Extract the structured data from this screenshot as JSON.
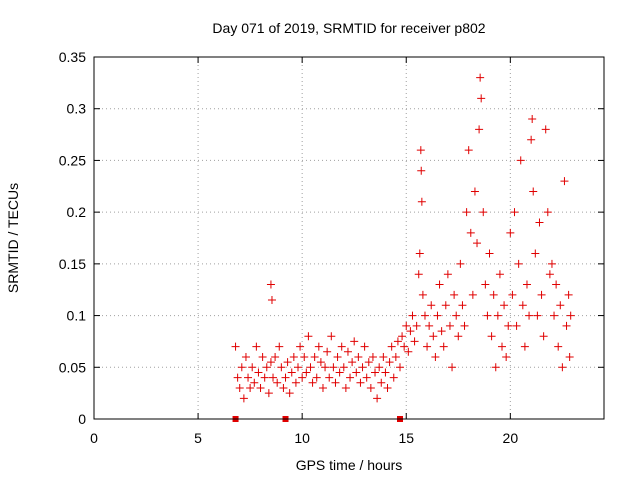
{
  "colors": {
    "series": "#e00000",
    "axis": "#000000",
    "grid": "#a0a0a0",
    "background": "#ffffff"
  },
  "chart_data": {
    "type": "scatter",
    "title": "Day 071 of 2019, SRMTID for receiver p802",
    "xlabel": "GPS time / hours",
    "ylabel": "SRMTID / TECUs",
    "xlim": [
      0,
      24.5
    ],
    "ylim": [
      0,
      0.35
    ],
    "xticks": [
      0,
      5,
      10,
      15,
      20
    ],
    "yticks": [
      0,
      0.05,
      0.1,
      0.15,
      0.2,
      0.25,
      0.3,
      0.35
    ],
    "xtick_labels": [
      "0",
      "5",
      "10",
      "15",
      "20"
    ],
    "ytick_labels": [
      "0",
      "0.05",
      "0.1",
      "0.15",
      "0.2",
      "0.25",
      "0.3",
      "0.35"
    ],
    "grid": true,
    "series": [
      {
        "name": "SRMTID",
        "marker": "+",
        "points": [
          [
            6.8,
            0.07
          ],
          [
            6.9,
            0.04
          ],
          [
            7.0,
            0.03
          ],
          [
            7.1,
            0.05
          ],
          [
            7.2,
            0.02
          ],
          [
            7.3,
            0.06
          ],
          [
            7.4,
            0.04
          ],
          [
            7.5,
            0.03
          ],
          [
            7.6,
            0.05
          ],
          [
            7.7,
            0.035
          ],
          [
            7.8,
            0.07
          ],
          [
            7.9,
            0.045
          ],
          [
            8.0,
            0.03
          ],
          [
            8.1,
            0.06
          ],
          [
            8.2,
            0.04
          ],
          [
            8.3,
            0.05
          ],
          [
            8.4,
            0.025
          ],
          [
            8.5,
            0.055
          ],
          [
            8.5,
            0.13
          ],
          [
            8.55,
            0.115
          ],
          [
            8.6,
            0.04
          ],
          [
            8.7,
            0.06
          ],
          [
            8.8,
            0.035
          ],
          [
            8.9,
            0.07
          ],
          [
            9.0,
            0.05
          ],
          [
            9.1,
            0.03
          ],
          [
            9.2,
            0.04
          ],
          [
            9.3,
            0.055
          ],
          [
            9.4,
            0.025
          ],
          [
            9.5,
            0.045
          ],
          [
            9.6,
            0.06
          ],
          [
            9.7,
            0.035
          ],
          [
            9.8,
            0.05
          ],
          [
            9.9,
            0.07
          ],
          [
            10.0,
            0.04
          ],
          [
            10.1,
            0.06
          ],
          [
            10.2,
            0.045
          ],
          [
            10.3,
            0.08
          ],
          [
            10.4,
            0.05
          ],
          [
            10.5,
            0.035
          ],
          [
            10.6,
            0.06
          ],
          [
            10.7,
            0.04
          ],
          [
            10.8,
            0.07
          ],
          [
            10.9,
            0.055
          ],
          [
            11.0,
            0.03
          ],
          [
            11.1,
            0.05
          ],
          [
            11.2,
            0.065
          ],
          [
            11.3,
            0.04
          ],
          [
            11.4,
            0.08
          ],
          [
            11.5,
            0.05
          ],
          [
            11.6,
            0.035
          ],
          [
            11.7,
            0.06
          ],
          [
            11.8,
            0.045
          ],
          [
            11.9,
            0.07
          ],
          [
            12.0,
            0.05
          ],
          [
            12.1,
            0.03
          ],
          [
            12.2,
            0.065
          ],
          [
            12.3,
            0.04
          ],
          [
            12.4,
            0.055
          ],
          [
            12.5,
            0.075
          ],
          [
            12.6,
            0.045
          ],
          [
            12.7,
            0.06
          ],
          [
            12.8,
            0.035
          ],
          [
            12.9,
            0.05
          ],
          [
            13.0,
            0.07
          ],
          [
            13.1,
            0.04
          ],
          [
            13.2,
            0.055
          ],
          [
            13.3,
            0.03
          ],
          [
            13.4,
            0.06
          ],
          [
            13.5,
            0.045
          ],
          [
            13.6,
            0.02
          ],
          [
            13.7,
            0.05
          ],
          [
            13.8,
            0.035
          ],
          [
            13.9,
            0.06
          ],
          [
            14.0,
            0.045
          ],
          [
            14.1,
            0.03
          ],
          [
            14.2,
            0.055
          ],
          [
            14.3,
            0.07
          ],
          [
            14.4,
            0.04
          ],
          [
            14.5,
            0.06
          ],
          [
            14.6,
            0.075
          ],
          [
            14.7,
            0.05
          ],
          [
            14.8,
            0.08
          ],
          [
            14.9,
            0.07
          ],
          [
            15.0,
            0.09
          ],
          [
            15.1,
            0.065
          ],
          [
            15.2,
            0.085
          ],
          [
            15.3,
            0.1
          ],
          [
            15.4,
            0.075
          ],
          [
            15.5,
            0.09
          ],
          [
            15.6,
            0.14
          ],
          [
            15.65,
            0.16
          ],
          [
            15.7,
            0.26
          ],
          [
            15.72,
            0.24
          ],
          [
            15.75,
            0.21
          ],
          [
            15.8,
            0.12
          ],
          [
            15.9,
            0.1
          ],
          [
            16.0,
            0.07
          ],
          [
            16.1,
            0.09
          ],
          [
            16.2,
            0.11
          ],
          [
            16.3,
            0.08
          ],
          [
            16.4,
            0.06
          ],
          [
            16.5,
            0.1
          ],
          [
            16.6,
            0.13
          ],
          [
            16.7,
            0.085
          ],
          [
            16.8,
            0.07
          ],
          [
            16.9,
            0.11
          ],
          [
            17.0,
            0.14
          ],
          [
            17.1,
            0.09
          ],
          [
            17.2,
            0.05
          ],
          [
            17.3,
            0.12
          ],
          [
            17.4,
            0.1
          ],
          [
            17.5,
            0.08
          ],
          [
            17.6,
            0.15
          ],
          [
            17.7,
            0.11
          ],
          [
            17.8,
            0.09
          ],
          [
            17.9,
            0.2
          ],
          [
            18.0,
            0.26
          ],
          [
            18.1,
            0.18
          ],
          [
            18.2,
            0.12
          ],
          [
            18.3,
            0.22
          ],
          [
            18.4,
            0.17
          ],
          [
            18.5,
            0.28
          ],
          [
            18.55,
            0.33
          ],
          [
            18.6,
            0.31
          ],
          [
            18.7,
            0.2
          ],
          [
            18.8,
            0.13
          ],
          [
            18.9,
            0.1
          ],
          [
            19.0,
            0.16
          ],
          [
            19.1,
            0.08
          ],
          [
            19.2,
            0.12
          ],
          [
            19.3,
            0.05
          ],
          [
            19.4,
            0.1
          ],
          [
            19.5,
            0.14
          ],
          [
            19.6,
            0.07
          ],
          [
            19.7,
            0.11
          ],
          [
            19.8,
            0.06
          ],
          [
            19.9,
            0.09
          ],
          [
            20.0,
            0.18
          ],
          [
            20.1,
            0.12
          ],
          [
            20.2,
            0.2
          ],
          [
            20.3,
            0.09
          ],
          [
            20.4,
            0.15
          ],
          [
            20.5,
            0.25
          ],
          [
            20.6,
            0.11
          ],
          [
            20.7,
            0.07
          ],
          [
            20.8,
            0.13
          ],
          [
            20.9,
            0.1
          ],
          [
            21.0,
            0.27
          ],
          [
            21.05,
            0.29
          ],
          [
            21.1,
            0.22
          ],
          [
            21.2,
            0.16
          ],
          [
            21.3,
            0.1
          ],
          [
            21.4,
            0.19
          ],
          [
            21.5,
            0.12
          ],
          [
            21.6,
            0.08
          ],
          [
            21.7,
            0.28
          ],
          [
            21.8,
            0.2
          ],
          [
            21.9,
            0.14
          ],
          [
            22.0,
            0.15
          ],
          [
            22.1,
            0.1
          ],
          [
            22.2,
            0.13
          ],
          [
            22.3,
            0.07
          ],
          [
            22.4,
            0.11
          ],
          [
            22.5,
            0.05
          ],
          [
            22.6,
            0.23
          ],
          [
            22.7,
            0.09
          ],
          [
            22.8,
            0.12
          ],
          [
            22.85,
            0.06
          ],
          [
            22.9,
            0.1
          ]
        ]
      }
    ],
    "data_gaps_at_zero": [
      6.8,
      9.2,
      14.7
    ]
  }
}
